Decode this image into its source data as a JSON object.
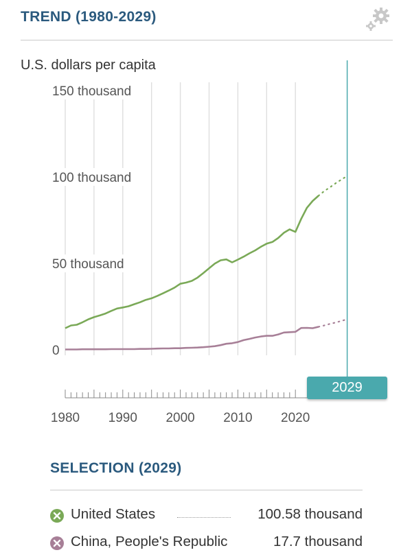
{
  "header": {
    "title": "TREND (1980-2029)",
    "settings_icon": "gear-icon"
  },
  "chart_data": {
    "type": "line",
    "unit_label": "U.S. dollars per capita",
    "y_ticks": [
      {
        "value": 0,
        "label": "0"
      },
      {
        "value": 50000,
        "label": "50 thousand"
      },
      {
        "value": 100000,
        "label": "100 thousand"
      },
      {
        "value": 150000,
        "label": "150 thousand"
      }
    ],
    "ylim": [
      0,
      150000
    ],
    "xlim": [
      1980,
      2029
    ],
    "x_ticks": [
      {
        "value": 1980,
        "label": "1980"
      },
      {
        "value": 1990,
        "label": "1990"
      },
      {
        "value": 2000,
        "label": "2000"
      },
      {
        "value": 2010,
        "label": "2010"
      },
      {
        "value": 2020,
        "label": "2020"
      }
    ],
    "grid": true,
    "selected_year": 2029,
    "series": [
      {
        "name": "United States",
        "color": "#7aa957",
        "x": [
          1980,
          1981,
          1982,
          1983,
          1984,
          1985,
          1986,
          1987,
          1988,
          1989,
          1990,
          1991,
          1992,
          1993,
          1994,
          1995,
          1996,
          1997,
          1998,
          1999,
          2000,
          2001,
          2002,
          2003,
          2004,
          2005,
          2006,
          2007,
          2008,
          2009,
          2010,
          2011,
          2012,
          2013,
          2014,
          2015,
          2016,
          2017,
          2018,
          2019,
          2020,
          2021,
          2022,
          2023,
          2024
        ],
        "values": [
          12500,
          14100,
          14500,
          15900,
          17600,
          18900,
          19900,
          21000,
          22500,
          23900,
          24500,
          25200,
          26400,
          27500,
          28900,
          29800,
          31200,
          32700,
          34300,
          36000,
          38200,
          38900,
          39900,
          41800,
          44400,
          47200,
          49900,
          51800,
          52300,
          50600,
          52200,
          53900,
          55800,
          57500,
          59600,
          61400,
          62400,
          64700,
          67700,
          69700,
          68200,
          75700,
          82200,
          86100,
          89100
        ],
        "projection_x": [
          2024,
          2025,
          2026,
          2027,
          2028,
          2029
        ],
        "projection_values": [
          89100,
          91800,
          94000,
          96400,
          98500,
          100580
        ]
      },
      {
        "name": "China, People's Republic",
        "color": "#a77f97",
        "x": [
          1980,
          1981,
          1982,
          1983,
          1984,
          1985,
          1986,
          1987,
          1988,
          1989,
          1990,
          1991,
          1992,
          1993,
          1994,
          1995,
          1996,
          1997,
          1998,
          1999,
          2000,
          2001,
          2002,
          2003,
          2004,
          2005,
          2006,
          2007,
          2008,
          2009,
          2010,
          2011,
          2012,
          2013,
          2014,
          2015,
          2016,
          2017,
          2018,
          2019,
          2020,
          2021,
          2022,
          2023,
          2024
        ],
        "values": [
          200,
          200,
          200,
          300,
          300,
          300,
          300,
          300,
          400,
          400,
          400,
          400,
          400,
          500,
          500,
          600,
          700,
          800,
          800,
          900,
          900,
          1100,
          1200,
          1300,
          1500,
          1800,
          2100,
          2700,
          3500,
          3800,
          4500,
          5600,
          6300,
          7100,
          7700,
          8100,
          8100,
          8900,
          10000,
          10200,
          10400,
          12600,
          12700,
          12500,
          13300
        ],
        "projection_x": [
          2024,
          2025,
          2026,
          2027,
          2028,
          2029
        ],
        "projection_values": [
          13300,
          14100,
          15000,
          15800,
          16700,
          17700
        ]
      }
    ]
  },
  "timeline": {
    "selected_label": "2029"
  },
  "selection": {
    "title": "SELECTION (2029)",
    "rows": [
      {
        "name": "United States",
        "value": "100.58 thousand",
        "color": "#7aa957"
      },
      {
        "name": "China, People's Republic",
        "value": "17.7 thousand",
        "color": "#a77f97"
      }
    ]
  }
}
